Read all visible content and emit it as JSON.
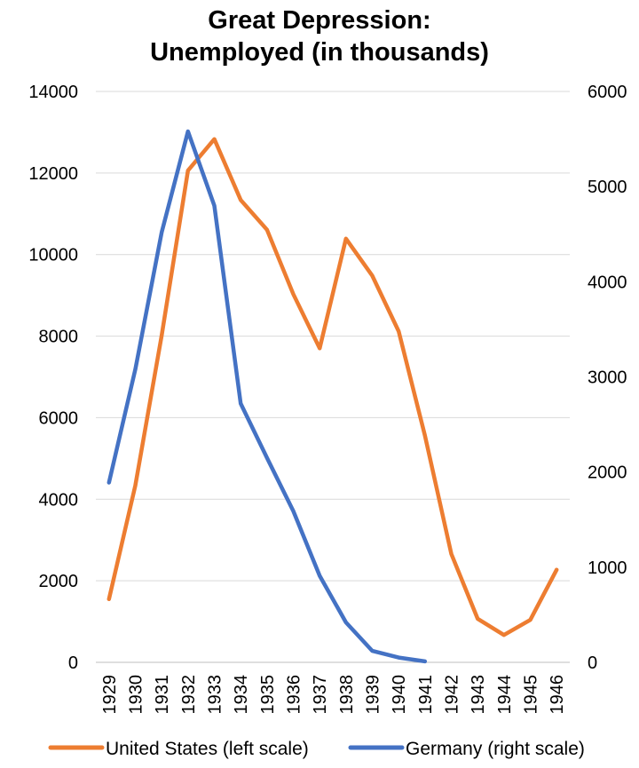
{
  "chart_data": {
    "type": "line",
    "title_lines": [
      "Great Depression:",
      "Unemployed (in thousands)"
    ],
    "categories": [
      "1929",
      "1930",
      "1931",
      "1932",
      "1933",
      "1934",
      "1935",
      "1936",
      "1937",
      "1938",
      "1939",
      "1940",
      "1941",
      "1942",
      "1943",
      "1944",
      "1945",
      "1946"
    ],
    "y_left": {
      "min": 0,
      "max": 14000,
      "ticks": [
        "0",
        "2000",
        "4000",
        "6000",
        "8000",
        "10000",
        "12000",
        "14000"
      ]
    },
    "y_right": {
      "min": 0,
      "max": 6000,
      "ticks": [
        "0",
        "1000",
        "2000",
        "3000",
        "4000",
        "5000",
        "6000"
      ]
    },
    "grid": true,
    "legend_position": "bottom",
    "series": [
      {
        "name": "United States (left scale)",
        "axis": "left",
        "color": "#ED7D31",
        "values": [
          1550,
          4340,
          8020,
          12060,
          12830,
          11340,
          10610,
          9030,
          7700,
          10390,
          9480,
          8120,
          5560,
          2660,
          1070,
          670,
          1040,
          2270
        ]
      },
      {
        "name": "Germany (right scale)",
        "axis": "right",
        "color": "#4472C4",
        "values": [
          1890,
          3080,
          4520,
          5580,
          4800,
          2720,
          2150,
          1590,
          910,
          420,
          120,
          50,
          10,
          null,
          null,
          null,
          null,
          null
        ]
      }
    ]
  }
}
